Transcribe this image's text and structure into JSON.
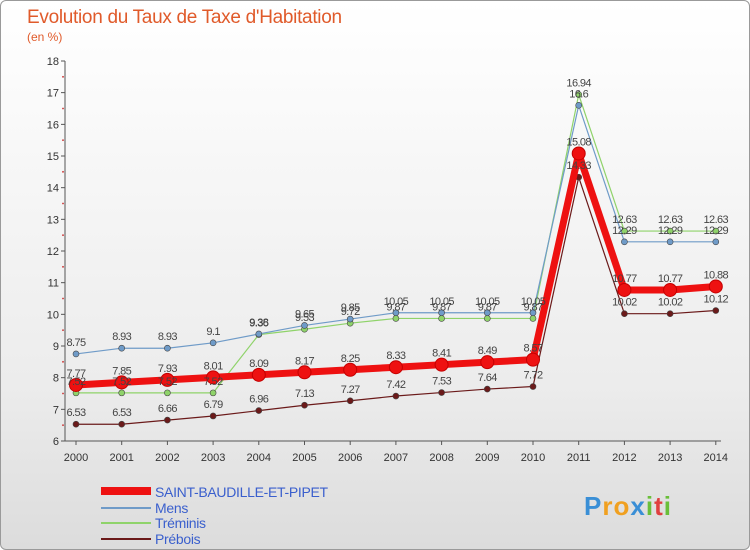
{
  "chart_data": {
    "type": "line",
    "title": "Evolution du Taux de Taxe d'Habitation",
    "subtitle": "(en %)",
    "xlabel": "",
    "ylabel": "",
    "categories": [
      "2000",
      "2001",
      "2002",
      "2003",
      "2004",
      "2005",
      "2006",
      "2007",
      "2008",
      "2009",
      "2010",
      "2011",
      "2012",
      "2013",
      "2014"
    ],
    "ylim": [
      6,
      18
    ],
    "yticks": [
      "6",
      "7",
      "8",
      "9",
      "10",
      "11",
      "12",
      "13",
      "14",
      "15",
      "16",
      "17",
      "18"
    ],
    "series": [
      {
        "name": "Prébois",
        "color": "#6b1a1a",
        "values": [
          6.53,
          6.53,
          6.66,
          6.79,
          6.96,
          7.13,
          7.27,
          7.42,
          7.53,
          7.64,
          7.72,
          14.33,
          10.02,
          10.02,
          10.12
        ],
        "labels": [
          "6.53",
          "6.53",
          "6.66",
          "6.79",
          "6.96",
          "7.13",
          "7.27",
          "7.42",
          "7.53",
          "7.64",
          "7.72",
          "14.33",
          "10.02",
          "10.02",
          "10.12"
        ]
      },
      {
        "name": "Tréminis",
        "color": "#8fd36a",
        "values": [
          7.52,
          7.52,
          7.52,
          7.52,
          9.36,
          9.53,
          9.72,
          9.87,
          9.87,
          9.87,
          9.87,
          16.94,
          12.63,
          12.63,
          12.63
        ],
        "labels": [
          "7.52",
          "7.52",
          "7.52",
          "7.52",
          "9.36",
          "9.53",
          "9.72",
          "9.87",
          "9.87",
          "9.87",
          "9.87",
          "16.94",
          "12.63",
          "12.63",
          "12.63"
        ]
      },
      {
        "name": "Mens",
        "color": "#6f9bc8",
        "values": [
          8.75,
          8.93,
          8.93,
          9.1,
          9.38,
          9.65,
          9.85,
          10.05,
          10.05,
          10.05,
          10.05,
          16.6,
          12.29,
          12.29,
          12.29
        ],
        "labels": [
          "8.75",
          "8.93",
          "8.93",
          "9.1",
          "9.38",
          "9.65",
          "9.85",
          "10.05",
          "10.05",
          "10.05",
          "10.05",
          "16.6",
          "12.29",
          "12.29",
          "12.29"
        ]
      },
      {
        "name": "SAINT-BAUDILLE-ET-PIPET",
        "color": "#ee1111",
        "values": [
          7.77,
          7.85,
          7.93,
          8.01,
          8.09,
          8.17,
          8.25,
          8.33,
          8.41,
          8.49,
          8.57,
          15.08,
          10.77,
          10.77,
          10.88
        ],
        "labels": [
          "7.77",
          "7.85",
          "7.93",
          "8.01",
          "8.09",
          "8.17",
          "8.25",
          "8.33",
          "8.41",
          "8.49",
          "8.57",
          "15.08",
          "10.77",
          "10.77",
          "10.88"
        ]
      }
    ],
    "legend": [
      "SAINT-BAUDILLE-ET-PIPET",
      "Mens",
      "Tréminis",
      "Prébois"
    ],
    "legend_position": "bottom-left",
    "grid": false
  },
  "logo": {
    "letters": [
      "P",
      "r",
      "o",
      "x",
      "i",
      "t",
      "i"
    ],
    "colors": [
      "#3a8fd6",
      "#f0a020",
      "#f0a020",
      "#3a8fd6",
      "#6abf3a",
      "#e04040",
      "#6abf3a"
    ]
  }
}
